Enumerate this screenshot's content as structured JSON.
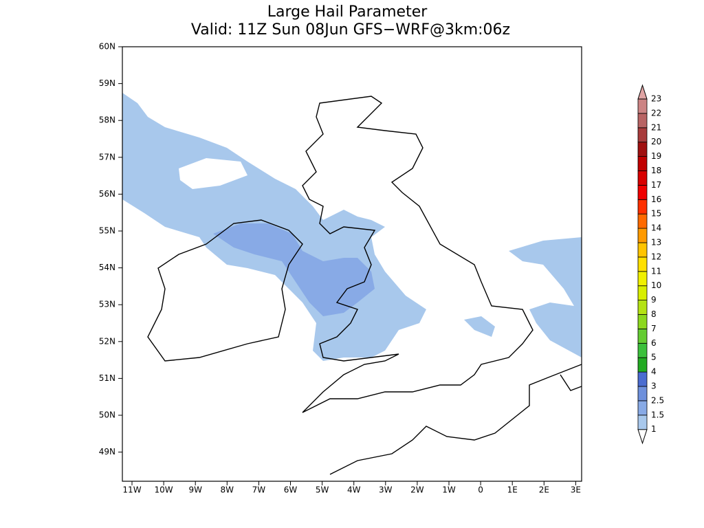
{
  "header": {
    "title": "Large Hail Parameter",
    "subtitle": "Valid: 11Z Sun 08Jun GFS−WRF@3km:06z"
  },
  "map": {
    "lat_labels": [
      "60N",
      "59N",
      "58N",
      "57N",
      "56N",
      "55N",
      "54N",
      "53N",
      "52N",
      "51N",
      "50N",
      "49N"
    ],
    "lon_labels": [
      "11W",
      "10W",
      "9W",
      "8W",
      "7W",
      "6W",
      "5W",
      "4W",
      "3W",
      "2W",
      "1W",
      "0",
      "1E",
      "2E",
      "3E"
    ]
  },
  "colorbar": {
    "levels": [
      "1",
      "1.5",
      "2.5",
      "3",
      "4",
      "5",
      "6",
      "7",
      "8",
      "9",
      "10",
      "11",
      "12",
      "13",
      "14",
      "15",
      "16",
      "17",
      "18",
      "19",
      "20",
      "21",
      "22",
      "23"
    ],
    "colors": [
      "#ffffff",
      "#a8c8ec",
      "#88aae6",
      "#6e90dc",
      "#4a6cd0",
      "#22aa22",
      "#3cc03c",
      "#64cc32",
      "#8cd81e",
      "#b4e214",
      "#d8ee00",
      "#f0f000",
      "#ffe000",
      "#ffc400",
      "#ff9a00",
      "#ff6a00",
      "#ff3000",
      "#f00000",
      "#d80000",
      "#c00000",
      "#a01010",
      "#a83c3c",
      "#b86464",
      "#cc8484",
      "#e0a4a4"
    ]
  }
}
